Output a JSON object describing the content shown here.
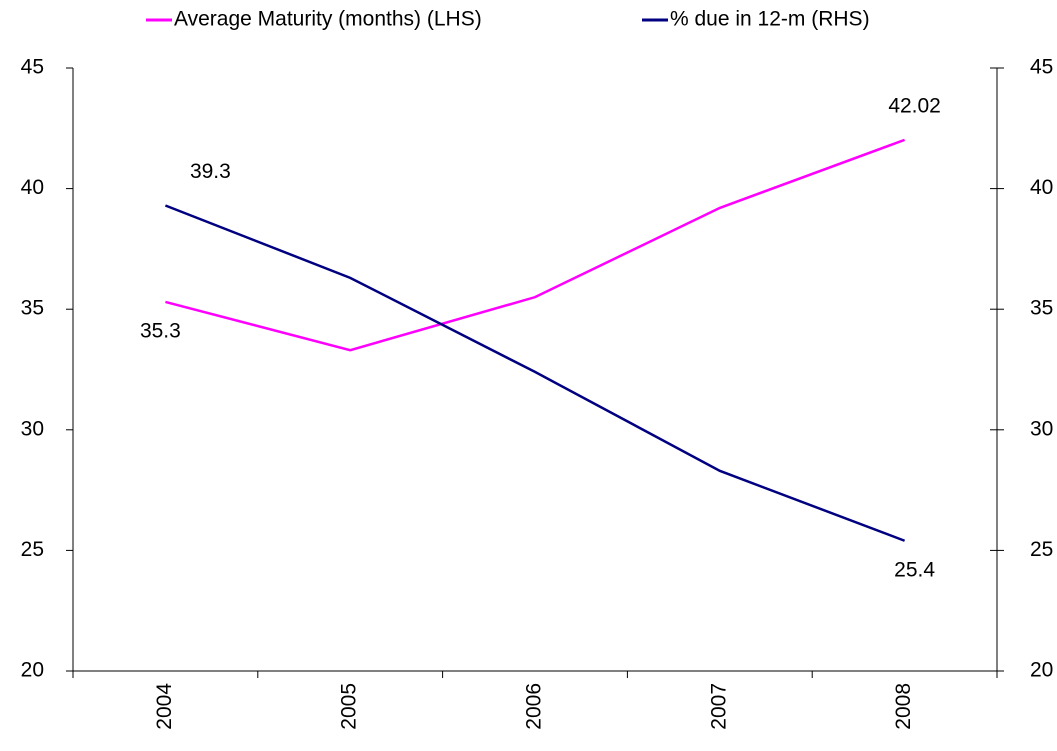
{
  "chart_data": {
    "type": "line",
    "categories": [
      "2004",
      "2005",
      "2006",
      "2007",
      "2008"
    ],
    "series": [
      {
        "name": "Average Maturity (months) (LHS)",
        "color": "#ff00ff",
        "values": [
          35.3,
          33.3,
          35.5,
          39.2,
          42.02
        ],
        "value_labels": [
          "35.3",
          null,
          null,
          null,
          "42.02"
        ]
      },
      {
        "name": "% due in 12-m (RHS)",
        "color": "#000080",
        "axis": "y2",
        "values": [
          39.3,
          36.3,
          32.4,
          28.3,
          25.4
        ],
        "value_labels": [
          "39.3",
          null,
          null,
          null,
          "25.4"
        ]
      }
    ],
    "ylim": [
      20,
      45
    ],
    "yticks": [
      20,
      25,
      30,
      35,
      40,
      45
    ],
    "y2lim": [
      20,
      45
    ],
    "y2ticks": [
      20,
      25,
      30,
      35,
      40,
      45
    ],
    "grid": false,
    "legend": "top"
  }
}
